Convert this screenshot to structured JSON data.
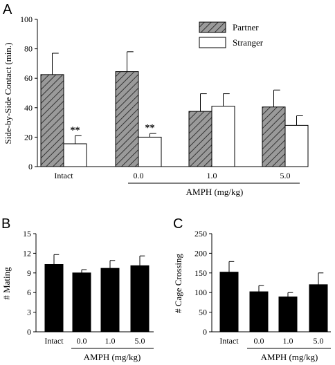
{
  "chart_data": [
    {
      "panel": "A",
      "type": "bar",
      "categories": [
        "Intact",
        "0.0",
        "1.0",
        "5.0"
      ],
      "group_label": "AMPH (mg/kg)",
      "group_spans_categories": [
        "0.0",
        "5.0"
      ],
      "ylabel": "Side-by-Side Contact (min.)",
      "ylim": [
        0,
        100
      ],
      "yticks": [
        0,
        20,
        40,
        60,
        80,
        100
      ],
      "legend_position": "top-right",
      "series": [
        {
          "name": "Partner",
          "pattern": "hatched",
          "color": "#9a9a9a",
          "values": [
            62.5,
            64.5,
            37.5,
            40.5
          ],
          "errors": [
            14.5,
            13.5,
            12.0,
            11.5
          ]
        },
        {
          "name": "Stranger",
          "pattern": "open",
          "color": "#ffffff",
          "values": [
            15.5,
            20.0,
            41.0,
            28.0
          ],
          "errors": [
            5.5,
            2.5,
            8.5,
            6.5
          ],
          "significance": [
            "**",
            "**",
            "",
            ""
          ]
        }
      ]
    },
    {
      "panel": "B",
      "type": "bar",
      "categories": [
        "Intact",
        "0.0",
        "1.0",
        "5.0"
      ],
      "group_label": "AMPH (mg/kg)",
      "group_spans_categories": [
        "0.0",
        "5.0"
      ],
      "ylabel": "# Mating",
      "ylim": [
        0,
        15
      ],
      "yticks": [
        0,
        3,
        6,
        9,
        12,
        15
      ],
      "series": [
        {
          "color": "#000000",
          "values": [
            10.3,
            9.0,
            9.7,
            10.1
          ],
          "errors": [
            1.5,
            0.5,
            1.2,
            1.5
          ]
        }
      ]
    },
    {
      "panel": "C",
      "type": "bar",
      "categories": [
        "Intact",
        "0.0",
        "1.0",
        "5.0"
      ],
      "group_label": "AMPH (mg/kg)",
      "group_spans_categories": [
        "0.0",
        "5.0"
      ],
      "ylabel": "# Cage Crossing",
      "ylim": [
        0,
        250
      ],
      "yticks": [
        0,
        50,
        100,
        150,
        200,
        250
      ],
      "series": [
        {
          "color": "#000000",
          "values": [
            152,
            102,
            89,
            120
          ],
          "errors": [
            27,
            16,
            11,
            30
          ]
        }
      ]
    }
  ]
}
